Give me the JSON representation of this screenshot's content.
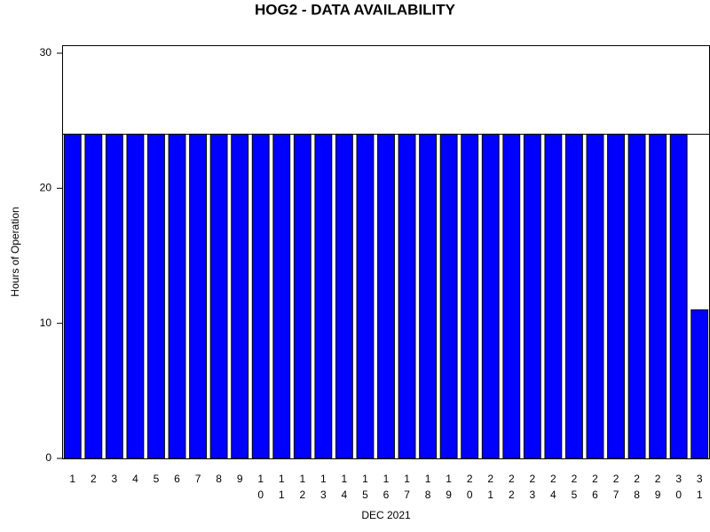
{
  "chart_data": {
    "type": "bar",
    "title": "HOG2 - DATA AVAILABILITY",
    "x_label": "DEC 2021",
    "y_label": "Hours of Operation",
    "categories": [
      "1",
      "2",
      "3",
      "4",
      "5",
      "6",
      "7",
      "8",
      "9",
      "10",
      "11",
      "12",
      "13",
      "14",
      "15",
      "16",
      "17",
      "18",
      "19",
      "20",
      "21",
      "22",
      "23",
      "24",
      "25",
      "26",
      "27",
      "28",
      "29",
      "30",
      "31"
    ],
    "values": [
      24,
      24,
      24,
      24,
      24,
      24,
      24,
      24,
      24,
      24,
      24,
      24,
      24,
      24,
      24,
      24,
      24,
      24,
      24,
      24,
      24,
      24,
      24,
      24,
      24,
      24,
      24,
      24,
      24,
      24,
      11
    ],
    "color": "#0000ff",
    "reference_line": 24,
    "ylim": [
      0,
      30
    ],
    "yticks": [
      0,
      10,
      20,
      30
    ],
    "grid": false
  }
}
